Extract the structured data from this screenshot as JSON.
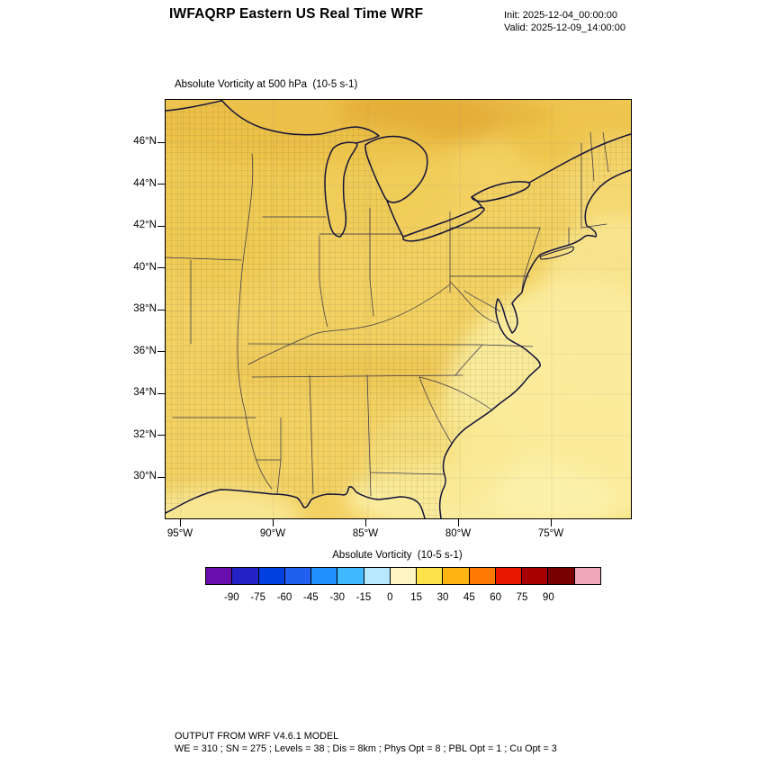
{
  "header": {
    "title": "IWFAQRP Eastern US Real Time WRF",
    "init": "Init: 2025-12-04_00:00:00",
    "valid": "Valid: 2025-12-09_14:00:00"
  },
  "map": {
    "title": "Absolute Vorticity at 500 hPa  (10-5 s-1)",
    "lat_tick_labels": [
      "46°N",
      "44°N",
      "42°N",
      "40°N",
      "38°N",
      "36°N",
      "34°N",
      "32°N",
      "30°N"
    ],
    "lon_tick_labels": [
      "95°W",
      "90°W",
      "85°W",
      "80°W",
      "75°W"
    ]
  },
  "colorbar": {
    "title": "Absolute Vorticity  (10-5 s-1)",
    "labels": [
      "-90",
      "-75",
      "-60",
      "-45",
      "-30",
      "-15",
      "0",
      "15",
      "30",
      "45",
      "60",
      "75",
      "90"
    ],
    "colors": [
      "#6a0dad",
      "#2222c8",
      "#0040e0",
      "#2060f0",
      "#2090ff",
      "#40b8ff",
      "#b8e8ff",
      "#fdf5c4",
      "#ffe34a",
      "#ffb414",
      "#ff7800",
      "#e81800",
      "#a80000",
      "#7a0000",
      "#f0a8b8"
    ]
  },
  "footer": {
    "line1": "OUTPUT FROM WRF V4.6.1 MODEL",
    "line2": "WE = 310 ; SN = 275 ; Levels = 38 ; Dis = 8km ; Phys Opt = 8 ; PBL Opt = 1 ; Cu Opt = 3"
  },
  "chart_data": {
    "type": "heatmap",
    "subtype": "filled-contour-weather-map",
    "title": "Absolute Vorticity at 500 hPa (10-5 s-1)",
    "variable": "Absolute Vorticity",
    "level": "500 hPa",
    "units": "10-5 s-1",
    "model": "WRF V4.6.1",
    "init_time": "2025-12-04_00:00:00",
    "valid_time": "2025-12-09_14:00:00",
    "x_axis": {
      "tick_labels": [
        "95°W",
        "90°W",
        "85°W",
        "80°W",
        "75°W"
      ],
      "approx_range_deg_west": [
        96,
        71
      ]
    },
    "y_axis": {
      "tick_labels": [
        "46°N",
        "44°N",
        "42°N",
        "40°N",
        "38°N",
        "36°N",
        "34°N",
        "32°N",
        "30°N"
      ],
      "approx_range_deg_north": [
        28.5,
        48
      ]
    },
    "colorbar": {
      "tick_values": [
        -90,
        -75,
        -60,
        -45,
        -30,
        -15,
        0,
        15,
        30,
        45,
        60,
        75,
        90
      ],
      "interval": 15,
      "legend_position": "bottom"
    },
    "grid": {
      "model_grid": "WE = 310 ; SN = 275 ; Levels = 38 ; Dis = 8km",
      "physics": "Phys Opt = 8 ; PBL Opt = 1 ; Cu Opt = 3"
    },
    "field_summary": "Vorticity field over the Eastern US is predominantly +10 to +30 (gold/yellow shading) across land, with locally higher values around +30 to +45 (darker gold/orange) along the northern edge, upper Great Lakes and Tennessee, and lower values near 0 to +15 (pale cream) over the western Atlantic, southeast coast and Gulf of Mexico."
  }
}
